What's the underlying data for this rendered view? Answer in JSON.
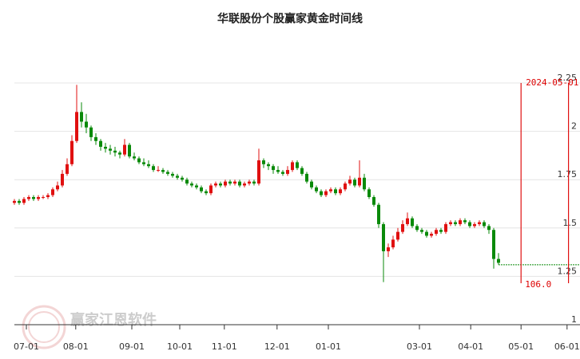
{
  "chart_data": {
    "type": "candlestick",
    "title": "华联股份个股赢家黄金时间线",
    "ylim": [
      1,
      2.25
    ],
    "yticks": [
      1,
      1.25,
      1.5,
      1.75,
      2,
      2.25
    ],
    "xlim": [
      0,
      118
    ],
    "xticks": [
      {
        "value": 2.5,
        "label": "07-01"
      },
      {
        "value": 12.8,
        "label": "08-01"
      },
      {
        "value": 24.5,
        "label": "09-01"
      },
      {
        "value": 34.5,
        "label": "10-01"
      },
      {
        "value": 43.8,
        "label": "11-01"
      },
      {
        "value": 54.8,
        "label": "12-01"
      },
      {
        "value": 65.5,
        "label": "01-01"
      },
      {
        "value": 84.5,
        "label": "03-01"
      },
      {
        "value": 95.2,
        "label": "04-01"
      },
      {
        "value": 105.7,
        "label": "05-01"
      },
      {
        "value": 115.3,
        "label": "06-01"
      }
    ],
    "up_color": "#e01010",
    "down_color": "#0a8a0a",
    "grid": true,
    "ohlc": [
      [
        1.63,
        1.65,
        1.62,
        1.64
      ],
      [
        1.64,
        1.65,
        1.62,
        1.63
      ],
      [
        1.63,
        1.66,
        1.62,
        1.65
      ],
      [
        1.65,
        1.67,
        1.64,
        1.66
      ],
      [
        1.66,
        1.67,
        1.64,
        1.65
      ],
      [
        1.65,
        1.67,
        1.64,
        1.66
      ],
      [
        1.66,
        1.67,
        1.65,
        1.66
      ],
      [
        1.66,
        1.68,
        1.65,
        1.67
      ],
      [
        1.67,
        1.71,
        1.66,
        1.7
      ],
      [
        1.7,
        1.74,
        1.69,
        1.72
      ],
      [
        1.72,
        1.8,
        1.71,
        1.78
      ],
      [
        1.78,
        1.86,
        1.77,
        1.83
      ],
      [
        1.83,
        1.98,
        1.82,
        1.95
      ],
      [
        1.95,
        2.24,
        1.94,
        2.1
      ],
      [
        2.1,
        2.15,
        2.02,
        2.05
      ],
      [
        2.05,
        2.09,
        1.99,
        2.02
      ],
      [
        2.02,
        2.03,
        1.95,
        1.97
      ],
      [
        1.97,
        1.99,
        1.93,
        1.95
      ],
      [
        1.95,
        1.96,
        1.9,
        1.92
      ],
      [
        1.92,
        1.94,
        1.89,
        1.91
      ],
      [
        1.91,
        1.93,
        1.88,
        1.9
      ],
      [
        1.9,
        1.92,
        1.87,
        1.89
      ],
      [
        1.89,
        1.9,
        1.86,
        1.88
      ],
      [
        1.88,
        1.96,
        1.87,
        1.93
      ],
      [
        1.93,
        1.94,
        1.86,
        1.87
      ],
      [
        1.87,
        1.89,
        1.85,
        1.86
      ],
      [
        1.86,
        1.87,
        1.83,
        1.84
      ],
      [
        1.84,
        1.86,
        1.82,
        1.83
      ],
      [
        1.83,
        1.85,
        1.81,
        1.82
      ],
      [
        1.82,
        1.83,
        1.79,
        1.8
      ],
      [
        1.8,
        1.82,
        1.79,
        1.8
      ],
      [
        1.8,
        1.81,
        1.78,
        1.79
      ],
      [
        1.79,
        1.8,
        1.77,
        1.78
      ],
      [
        1.78,
        1.79,
        1.76,
        1.77
      ],
      [
        1.77,
        1.78,
        1.75,
        1.76
      ],
      [
        1.76,
        1.77,
        1.74,
        1.75
      ],
      [
        1.75,
        1.76,
        1.72,
        1.73
      ],
      [
        1.73,
        1.74,
        1.71,
        1.72
      ],
      [
        1.72,
        1.73,
        1.7,
        1.71
      ],
      [
        1.71,
        1.72,
        1.68,
        1.69
      ],
      [
        1.69,
        1.7,
        1.67,
        1.68
      ],
      [
        1.68,
        1.73,
        1.67,
        1.72
      ],
      [
        1.72,
        1.74,
        1.71,
        1.73
      ],
      [
        1.73,
        1.74,
        1.71,
        1.72
      ],
      [
        1.72,
        1.75,
        1.71,
        1.74
      ],
      [
        1.74,
        1.75,
        1.72,
        1.73
      ],
      [
        1.73,
        1.75,
        1.72,
        1.74
      ],
      [
        1.74,
        1.75,
        1.71,
        1.72
      ],
      [
        1.72,
        1.74,
        1.71,
        1.73
      ],
      [
        1.73,
        1.75,
        1.72,
        1.74
      ],
      [
        1.74,
        1.75,
        1.72,
        1.73
      ],
      [
        1.73,
        1.91,
        1.72,
        1.85
      ],
      [
        1.85,
        1.86,
        1.81,
        1.83
      ],
      [
        1.83,
        1.84,
        1.8,
        1.82
      ],
      [
        1.82,
        1.83,
        1.78,
        1.8
      ],
      [
        1.8,
        1.82,
        1.78,
        1.79
      ],
      [
        1.79,
        1.8,
        1.77,
        1.78
      ],
      [
        1.78,
        1.82,
        1.77,
        1.8
      ],
      [
        1.8,
        1.85,
        1.79,
        1.84
      ],
      [
        1.84,
        1.85,
        1.8,
        1.81
      ],
      [
        1.81,
        1.82,
        1.77,
        1.78
      ],
      [
        1.78,
        1.79,
        1.73,
        1.74
      ],
      [
        1.74,
        1.75,
        1.7,
        1.71
      ],
      [
        1.71,
        1.72,
        1.68,
        1.69
      ],
      [
        1.69,
        1.7,
        1.66,
        1.67
      ],
      [
        1.67,
        1.7,
        1.66,
        1.69
      ],
      [
        1.69,
        1.71,
        1.68,
        1.7
      ],
      [
        1.7,
        1.71,
        1.67,
        1.68
      ],
      [
        1.68,
        1.71,
        1.67,
        1.7
      ],
      [
        1.7,
        1.74,
        1.69,
        1.73
      ],
      [
        1.73,
        1.77,
        1.72,
        1.75
      ],
      [
        1.75,
        1.76,
        1.71,
        1.72
      ],
      [
        1.72,
        1.85,
        1.71,
        1.76
      ],
      [
        1.76,
        1.78,
        1.69,
        1.7
      ],
      [
        1.7,
        1.71,
        1.65,
        1.66
      ],
      [
        1.66,
        1.67,
        1.61,
        1.62
      ],
      [
        1.62,
        1.63,
        1.5,
        1.52
      ],
      [
        1.52,
        1.53,
        1.22,
        1.38
      ],
      [
        1.38,
        1.42,
        1.35,
        1.4
      ],
      [
        1.4,
        1.46,
        1.39,
        1.44
      ],
      [
        1.44,
        1.5,
        1.43,
        1.48
      ],
      [
        1.48,
        1.54,
        1.47,
        1.52
      ],
      [
        1.52,
        1.58,
        1.51,
        1.55
      ],
      [
        1.55,
        1.56,
        1.5,
        1.51
      ],
      [
        1.51,
        1.52,
        1.48,
        1.49
      ],
      [
        1.49,
        1.5,
        1.47,
        1.48
      ],
      [
        1.48,
        1.49,
        1.45,
        1.46
      ],
      [
        1.46,
        1.48,
        1.45,
        1.47
      ],
      [
        1.47,
        1.5,
        1.46,
        1.49
      ],
      [
        1.49,
        1.5,
        1.47,
        1.48
      ],
      [
        1.48,
        1.53,
        1.47,
        1.52
      ],
      [
        1.52,
        1.54,
        1.51,
        1.53
      ],
      [
        1.53,
        1.54,
        1.51,
        1.52
      ],
      [
        1.52,
        1.55,
        1.51,
        1.54
      ],
      [
        1.54,
        1.55,
        1.52,
        1.53
      ],
      [
        1.53,
        1.54,
        1.5,
        1.51
      ],
      [
        1.51,
        1.53,
        1.5,
        1.52
      ],
      [
        1.52,
        1.54,
        1.51,
        1.53
      ],
      [
        1.53,
        1.54,
        1.5,
        1.51
      ],
      [
        1.51,
        1.52,
        1.47,
        1.49
      ],
      [
        1.49,
        1.5,
        1.29,
        1.34
      ],
      [
        1.34,
        1.37,
        1.31,
        1.32
      ]
    ],
    "reference_line": {
      "value": 1.31,
      "color": "#0a8a0a"
    },
    "markers": [
      {
        "x": 105.7,
        "label": "2024-05-01",
        "value_label": "106.0",
        "color": "#e01010"
      },
      {
        "x": 115.6,
        "color": "#e01010"
      }
    ],
    "watermark": "赢家江恩软件"
  }
}
